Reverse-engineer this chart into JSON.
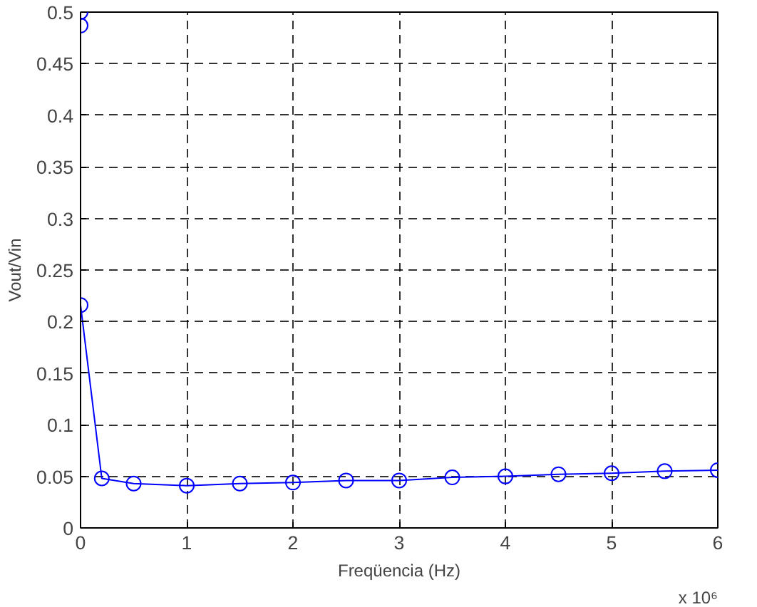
{
  "chart_data": {
    "type": "line",
    "xlabel": "Freqüencia (Hz)",
    "ylabel": "Vout/Vin",
    "annotations": [
      "x 10⁶"
    ],
    "series": [
      {
        "color": "#0000ff",
        "x": [
          0,
          0,
          0,
          0.2,
          0.5,
          1,
          1.5,
          2,
          2.5,
          3,
          3.5,
          4,
          4.5,
          5,
          5.5,
          6
        ],
        "values": [
          0.5,
          0.487,
          0.216,
          0.048,
          0.043,
          0.041,
          0.043,
          0.044,
          0.046,
          0.046,
          0.049,
          0.05,
          0.052,
          0.053,
          0.055,
          0.056
        ]
      }
    ],
    "xlim": [
      0,
      6
    ],
    "ylim": [
      0,
      0.5
    ],
    "xticks": [
      0,
      1,
      2,
      3,
      4,
      5,
      6
    ],
    "yticks": [
      0,
      0.05,
      0.1,
      0.15,
      0.2,
      0.25,
      0.3,
      0.35,
      0.4,
      0.45,
      0.5
    ],
    "grid": true,
    "marker": "circle",
    "line_style": "solid"
  }
}
